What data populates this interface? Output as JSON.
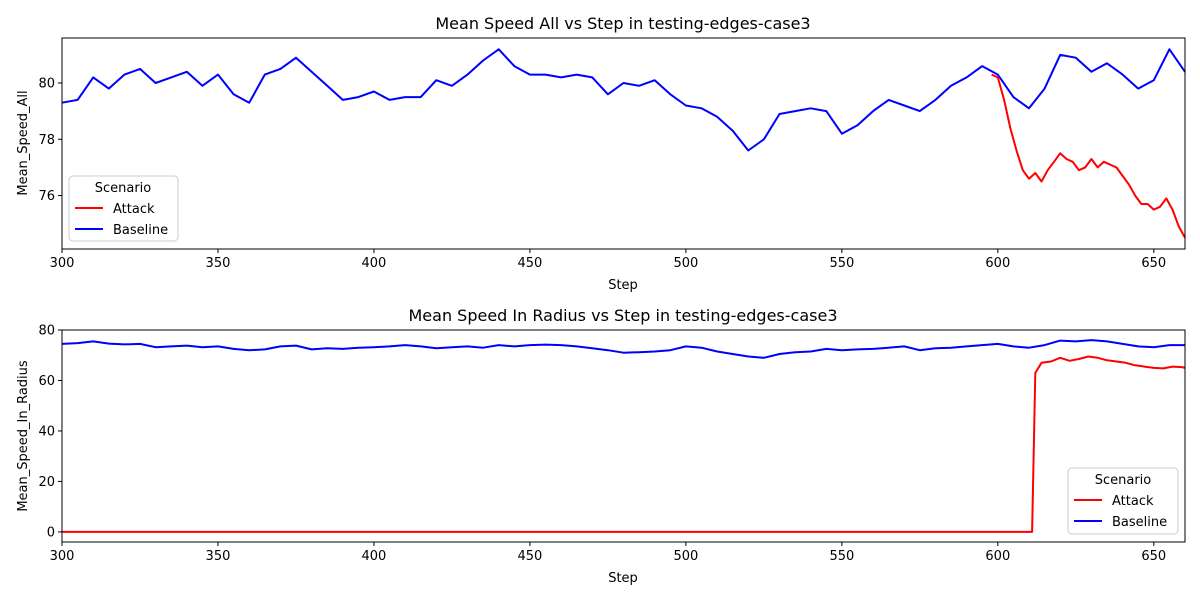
{
  "chart_data": [
    {
      "type": "line",
      "title": "Mean Speed All vs Step in testing-edges-case3",
      "xlabel": "Step",
      "ylabel": "Mean_Speed_All",
      "xlim": [
        300,
        660
      ],
      "ylim": [
        74.1,
        81.6
      ],
      "xticks": [
        300,
        350,
        400,
        450,
        500,
        550,
        600,
        650
      ],
      "yticks": [
        76,
        78,
        80
      ],
      "grid": false,
      "legend": {
        "title": "Scenario",
        "placement": "lower-left",
        "entries": [
          "Attack",
          "Baseline"
        ]
      },
      "series": [
        {
          "name": "Baseline",
          "color": "#0000ff",
          "x": [
            300,
            305,
            310,
            315,
            320,
            325,
            330,
            335,
            340,
            345,
            350,
            355,
            360,
            365,
            370,
            375,
            380,
            385,
            390,
            395,
            400,
            405,
            410,
            415,
            420,
            425,
            430,
            435,
            440,
            445,
            450,
            455,
            460,
            465,
            470,
            475,
            480,
            485,
            490,
            495,
            500,
            505,
            510,
            515,
            520,
            525,
            530,
            535,
            540,
            545,
            550,
            555,
            560,
            565,
            570,
            575,
            580,
            585,
            590,
            595,
            600,
            605,
            610,
            615,
            620,
            625,
            630,
            635,
            640,
            645,
            650,
            655,
            660
          ],
          "y": [
            79.3,
            79.4,
            80.2,
            79.8,
            80.3,
            80.5,
            80.0,
            80.2,
            80.4,
            79.9,
            80.3,
            79.6,
            79.3,
            80.3,
            80.5,
            80.9,
            80.4,
            79.9,
            79.4,
            79.5,
            79.7,
            79.4,
            79.5,
            79.5,
            80.1,
            79.9,
            80.3,
            80.8,
            81.2,
            80.6,
            80.3,
            80.3,
            80.2,
            80.3,
            80.2,
            79.6,
            80.0,
            79.9,
            80.1,
            79.6,
            79.2,
            79.1,
            78.8,
            78.3,
            77.6,
            78.0,
            78.9,
            79.0,
            79.1,
            79.0,
            78.2,
            78.5,
            79.0,
            79.4,
            79.2,
            79.0,
            79.4,
            79.9,
            80.2,
            80.6,
            80.3,
            79.5,
            79.1,
            79.8,
            81.0,
            80.9,
            80.4,
            80.7,
            80.3,
            79.8,
            80.1,
            81.2,
            80.4
          ]
        },
        {
          "name": "Attack",
          "color": "#ff0000",
          "x": [
            598,
            600,
            602,
            604,
            606,
            608,
            610,
            612,
            614,
            616,
            618,
            620,
            622,
            624,
            626,
            628,
            630,
            632,
            634,
            636,
            638,
            640,
            642,
            644,
            646,
            648,
            650,
            652,
            654,
            656,
            658,
            660
          ],
          "y": [
            80.3,
            80.2,
            79.4,
            78.4,
            77.6,
            76.9,
            76.6,
            76.8,
            76.5,
            76.9,
            77.2,
            77.5,
            77.3,
            77.2,
            76.9,
            77.0,
            77.3,
            77.0,
            77.2,
            77.1,
            77.0,
            76.7,
            76.4,
            76.0,
            75.7,
            75.7,
            75.5,
            75.6,
            75.9,
            75.5,
            74.9,
            74.5
          ]
        }
      ]
    },
    {
      "type": "line",
      "title": "Mean Speed In Radius vs Step in testing-edges-case3",
      "xlabel": "Step",
      "ylabel": "Mean_Speed_In_Radius",
      "xlim": [
        300,
        660
      ],
      "ylim": [
        -4,
        80
      ],
      "xticks": [
        300,
        350,
        400,
        450,
        500,
        550,
        600,
        650
      ],
      "yticks": [
        0,
        20,
        40,
        60,
        80
      ],
      "grid": false,
      "legend": {
        "title": "Scenario",
        "placement": "lower-right",
        "entries": [
          "Attack",
          "Baseline"
        ]
      },
      "series": [
        {
          "name": "Baseline",
          "color": "#0000ff",
          "x": [
            300,
            305,
            310,
            315,
            320,
            325,
            330,
            335,
            340,
            345,
            350,
            355,
            360,
            365,
            370,
            375,
            380,
            385,
            390,
            395,
            400,
            405,
            410,
            415,
            420,
            425,
            430,
            435,
            440,
            445,
            450,
            455,
            460,
            465,
            470,
            475,
            480,
            485,
            490,
            495,
            500,
            505,
            510,
            515,
            520,
            525,
            530,
            535,
            540,
            545,
            550,
            555,
            560,
            565,
            570,
            575,
            580,
            585,
            590,
            595,
            600,
            605,
            610,
            615,
            620,
            625,
            630,
            635,
            640,
            645,
            650,
            655,
            660
          ],
          "y": [
            74.5,
            74.8,
            75.5,
            74.6,
            74.3,
            74.5,
            73.2,
            73.5,
            73.8,
            73.2,
            73.5,
            72.5,
            72.0,
            72.3,
            73.5,
            73.8,
            72.3,
            72.8,
            72.5,
            73.0,
            73.2,
            73.5,
            74.0,
            73.5,
            72.8,
            73.2,
            73.5,
            73.0,
            74.0,
            73.5,
            74.0,
            74.2,
            74.0,
            73.5,
            72.8,
            72.0,
            71.0,
            71.2,
            71.5,
            72.0,
            73.5,
            73.0,
            71.5,
            70.5,
            69.5,
            69.0,
            70.5,
            71.2,
            71.5,
            72.5,
            72.0,
            72.3,
            72.5,
            73.0,
            73.5,
            72.0,
            72.8,
            73.0,
            73.5,
            74.0,
            74.5,
            73.5,
            73.0,
            74.0,
            75.8,
            75.5,
            76.0,
            75.5,
            74.5,
            73.5,
            73.2,
            74.0,
            74.0
          ]
        },
        {
          "name": "Attack",
          "color": "#ff0000",
          "x": [
            300,
            611,
            612,
            614,
            617,
            620,
            623,
            626,
            629,
            632,
            635,
            638,
            641,
            644,
            647,
            650,
            653,
            656,
            659,
            660
          ],
          "y": [
            0,
            0,
            63,
            67,
            67.5,
            69,
            67.8,
            68.5,
            69.5,
            69,
            68,
            67.5,
            67,
            66,
            65.5,
            65,
            64.8,
            65.5,
            65.3,
            65
          ]
        }
      ]
    }
  ]
}
